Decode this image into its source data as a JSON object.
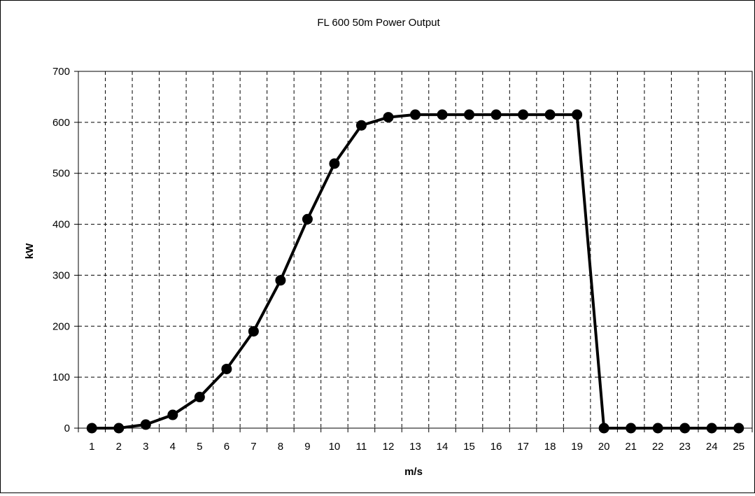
{
  "chart_data": {
    "type": "line",
    "title": "FL 600 50m Power Output",
    "xlabel": "m/s",
    "ylabel": "kW",
    "categories": [
      "1",
      "2",
      "3",
      "4",
      "5",
      "6",
      "7",
      "8",
      "9",
      "10",
      "11",
      "12",
      "13",
      "14",
      "15",
      "16",
      "17",
      "18",
      "19",
      "20",
      "21",
      "22",
      "23",
      "24",
      "25"
    ],
    "series": [
      {
        "values": [
          0,
          0,
          7,
          26,
          61,
          116,
          190,
          290,
          410,
          519,
          594,
          610,
          615,
          615,
          615,
          615,
          615,
          615,
          615,
          0,
          0,
          0,
          0,
          0,
          0
        ]
      }
    ],
    "ylim": [
      0,
      700
    ],
    "yticks": [
      0,
      100,
      200,
      300,
      400,
      500,
      600,
      700
    ],
    "grid": true,
    "legend": "none",
    "line_color": "#000000",
    "grid_color": "#000000"
  }
}
